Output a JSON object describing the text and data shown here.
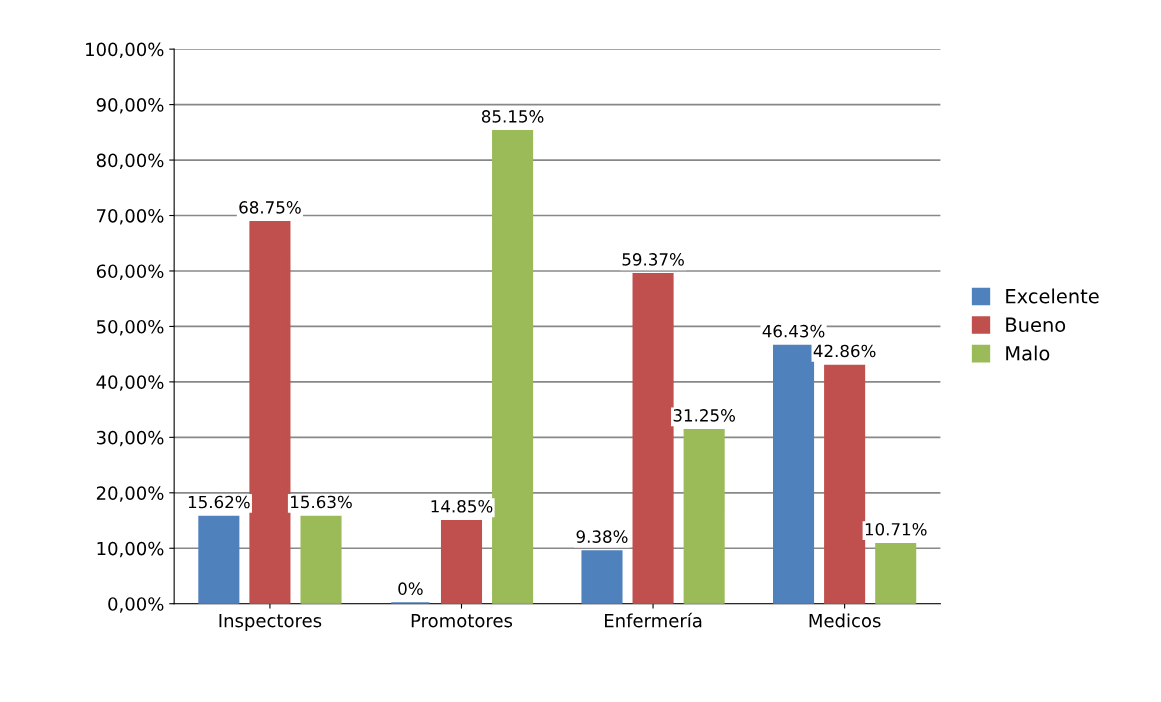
{
  "chart_data": {
    "type": "bar",
    "categories": [
      "Inspectores",
      "Promotores",
      "Enfermería",
      "Medicos"
    ],
    "series": [
      {
        "name": "Excelente",
        "color": "#4f81bd",
        "values": [
          15.62,
          0,
          9.38,
          46.43
        ],
        "value_labels": [
          "15.62%",
          "0%",
          "9.38%",
          "46.43%"
        ]
      },
      {
        "name": "Bueno",
        "color": "#c0504d",
        "values": [
          68.75,
          14.85,
          59.37,
          42.86
        ],
        "value_labels": [
          "68.75%",
          "14.85%",
          "59.37%",
          "42.86%"
        ]
      },
      {
        "name": "Malo",
        "color": "#9bbb59",
        "values": [
          15.63,
          85.15,
          31.25,
          10.71
        ],
        "value_labels": [
          "15.63%",
          "85.15%",
          "31.25%",
          "10.71%"
        ]
      }
    ],
    "ylim": [
      0,
      100
    ],
    "yticks": [
      {
        "value": 0,
        "label": "0,00%"
      },
      {
        "value": 10,
        "label": "10,00%"
      },
      {
        "value": 20,
        "label": "20,00%"
      },
      {
        "value": 30,
        "label": "30,00%"
      },
      {
        "value": 40,
        "label": "40,00%"
      },
      {
        "value": 50,
        "label": "50,00%"
      },
      {
        "value": 60,
        "label": "60,00%"
      },
      {
        "value": 70,
        "label": "70,00%"
      },
      {
        "value": 80,
        "label": "80,00%"
      },
      {
        "value": 90,
        "label": "90,00%"
      },
      {
        "value": 100,
        "label": "100,00%"
      }
    ],
    "grid": "y",
    "legend": "right"
  }
}
